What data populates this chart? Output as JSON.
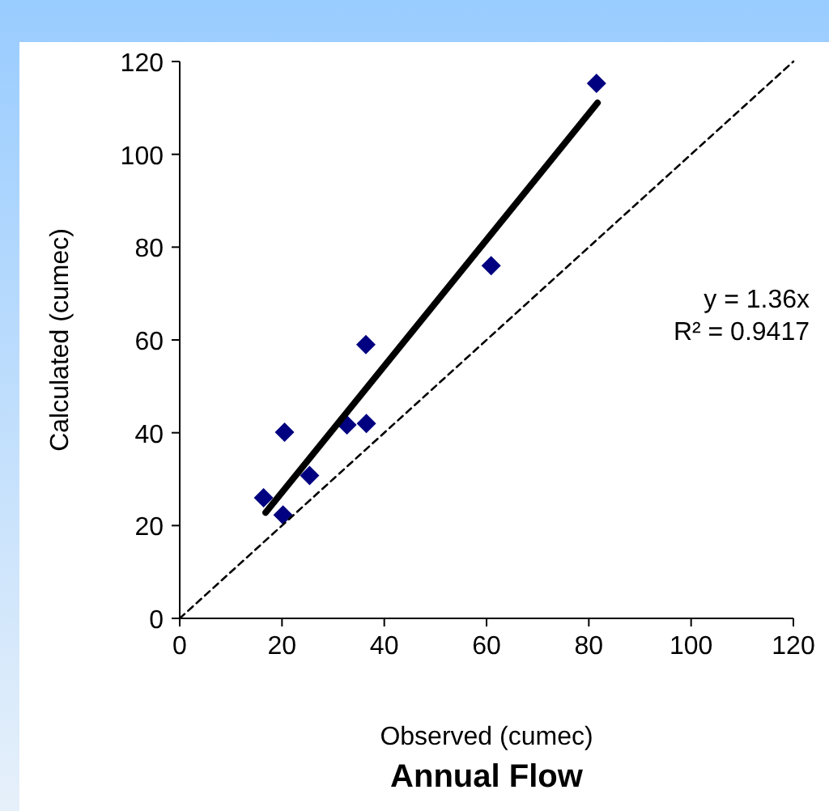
{
  "chart_data": {
    "type": "scatter",
    "title": "Annual Flow",
    "xlabel": "Observed (cumec)",
    "ylabel": "Calculated (cumec)",
    "xlim": [
      0,
      120
    ],
    "ylim": [
      0,
      120
    ],
    "xticks": [
      0,
      20,
      40,
      60,
      80,
      100,
      120
    ],
    "yticks": [
      0,
      20,
      40,
      60,
      80,
      100,
      120
    ],
    "grid": false,
    "annotations": [
      "y = 1.36x",
      "R² = 0.9417"
    ],
    "series": [
      {
        "color": "#000080",
        "marker": "diamond",
        "x": [
          16.4,
          20.2,
          20.5,
          25.4,
          32.7,
          36.5,
          36.4,
          60.9,
          81.5
        ],
        "values": [
          26.0,
          22.3,
          40.1,
          30.8,
          41.7,
          42.0,
          59.0,
          76.0,
          115.3
        ]
      },
      {
        "type": "line",
        "color": "#000000",
        "marker": "none",
        "line_style": "solid",
        "x": [
          16.8,
          81.7
        ],
        "values": [
          22.8,
          111.1
        ]
      },
      {
        "type": "line",
        "color": "#000000",
        "marker": "none",
        "line_style": "dashed",
        "x": [
          0,
          120
        ],
        "values": [
          0,
          120
        ]
      }
    ]
  }
}
